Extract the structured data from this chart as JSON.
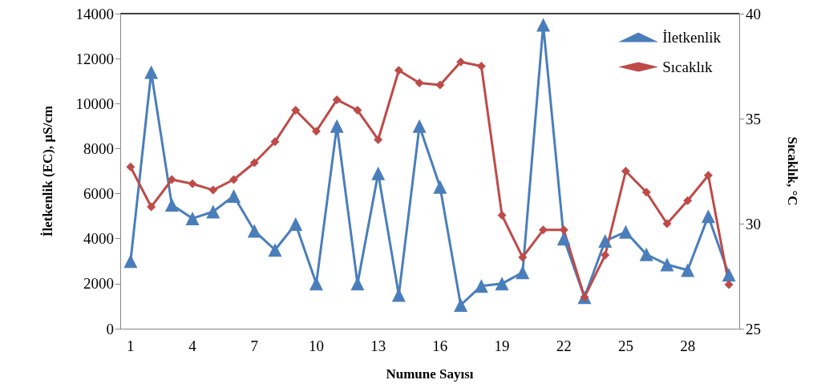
{
  "chart_data": {
    "type": "line",
    "xlabel": "Numune Sayısı",
    "ylabel": "İletkenlik (EC), µS/cm",
    "y2label": "Sıcaklık, °C",
    "categories": [
      "1",
      null,
      null,
      "4",
      null,
      null,
      "7",
      null,
      null,
      "10",
      null,
      null,
      "13",
      null,
      null,
      "16",
      null,
      null,
      "19",
      null,
      null,
      "22",
      null,
      null,
      "25",
      null,
      null,
      "28",
      null,
      null
    ],
    "series": [
      {
        "name": "İletkenlik",
        "color": "#4a7ebb",
        "marker": "triangle",
        "values": [
          3000,
          11400,
          5500,
          4900,
          5200,
          5900,
          4350,
          3500,
          4650,
          2000,
          9000,
          2000,
          6900,
          1500,
          9000,
          6300,
          1050,
          1900,
          2000,
          2500,
          13500,
          4000,
          1400,
          3900,
          4300,
          3300,
          2850,
          2600,
          5000,
          2400
        ]
      },
      {
        "name": "Sıcaklık",
        "color": "#be4b48",
        "marker": "diamond",
        "axis": "y2",
        "values": [
          32.7,
          30.8,
          32.1,
          31.9,
          31.6,
          32.1,
          32.9,
          33.9,
          35.4,
          34.4,
          35.9,
          35.4,
          34.0,
          37.3,
          36.7,
          36.6,
          37.7,
          37.5,
          30.4,
          28.4,
          29.7,
          29.7,
          26.5,
          28.5,
          32.5,
          31.5,
          30.0,
          31.1,
          32.3,
          27.1
        ]
      }
    ],
    "ylim": [
      0,
      14000
    ],
    "yticks": [
      0,
      2000,
      4000,
      6000,
      8000,
      10000,
      12000,
      14000
    ],
    "y2lim": [
      25,
      40
    ],
    "y2ticks": [
      25,
      30,
      35,
      40
    ],
    "grid": false,
    "legend": "top right",
    "line_style": "solid"
  }
}
